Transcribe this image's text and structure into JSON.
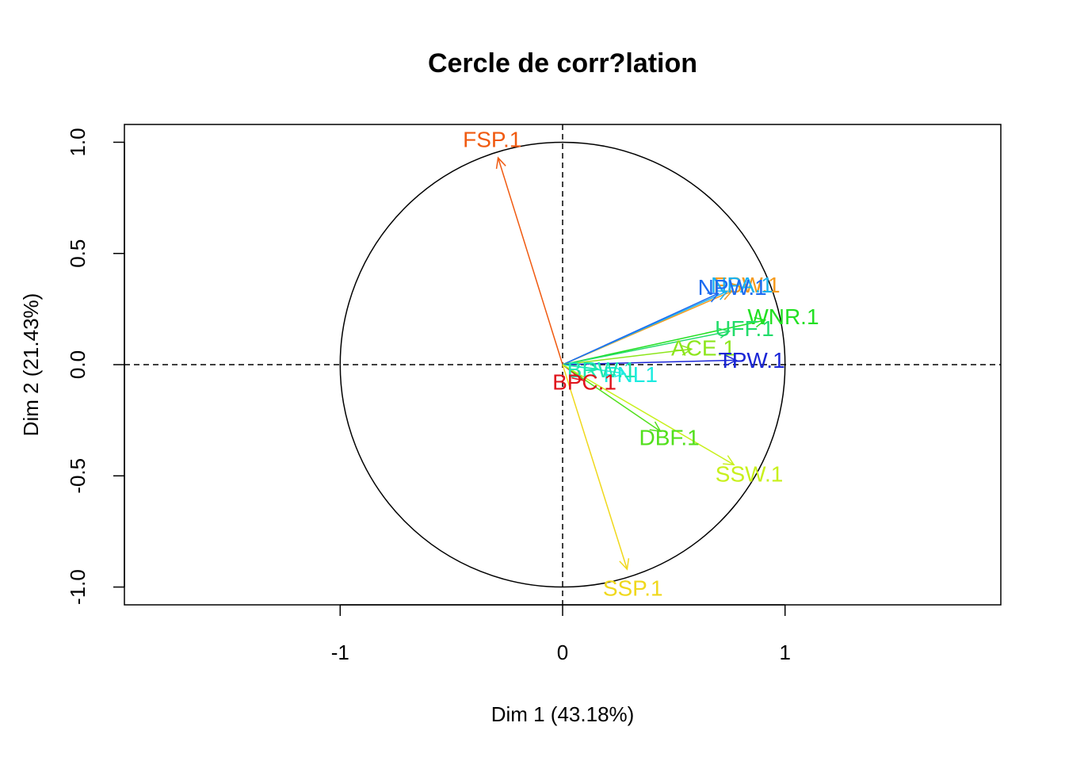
{
  "chart_data": {
    "type": "scatter",
    "subtype": "pca-correlation-circle",
    "title": "Cercle de corr?lation",
    "xlabel": "Dim 1 (43.18%)",
    "ylabel": "Dim 2 (21.43%)",
    "xlim": [
      -1.97,
      1.97
    ],
    "ylim": [
      -1.08,
      1.08
    ],
    "x_ticks": [
      {
        "value": -1,
        "label": "-1"
      },
      {
        "value": 0,
        "label": "0"
      },
      {
        "value": 1,
        "label": "1"
      }
    ],
    "y_ticks": [
      {
        "value": -1.0,
        "label": "-1.0"
      },
      {
        "value": -0.5,
        "label": "-0.5"
      },
      {
        "value": 0.0,
        "label": "0.0"
      },
      {
        "value": 0.5,
        "label": "0.5"
      },
      {
        "value": 1.0,
        "label": "1.0"
      }
    ],
    "unit_circle": true,
    "reference_lines": "dashed at x=0 and y=0",
    "variables": [
      {
        "name": "FSP.1",
        "x": -0.29,
        "y": 0.93,
        "color": "#F05A10"
      },
      {
        "name": "FSW.1",
        "x": 0.76,
        "y": 0.33,
        "color": "#F59A1C"
      },
      {
        "name": "NPA.1",
        "x": 0.74,
        "y": 0.33,
        "color": "#1AB2F0"
      },
      {
        "name": "NPW.1",
        "x": 0.7,
        "y": 0.32,
        "color": "#1C6BF0"
      },
      {
        "name": "WNR.1",
        "x": 0.91,
        "y": 0.2,
        "color": "#22E022"
      },
      {
        "name": "UFF.1",
        "x": 0.75,
        "y": 0.15,
        "color": "#22DC6A"
      },
      {
        "name": "ACE.1",
        "x": 0.58,
        "y": 0.07,
        "color": "#8CE61C"
      },
      {
        "name": "TPW.1",
        "x": 0.78,
        "y": 0.02,
        "color": "#1A26D6"
      },
      {
        "name": "FNL1",
        "x": 0.28,
        "y": -0.04,
        "color": "#1CEBE0"
      },
      {
        "name": "BRW.1",
        "x": 0.16,
        "y": -0.02,
        "color": "#1CE8B0"
      },
      {
        "name": "BPC.1",
        "x": 0.09,
        "y": -0.07,
        "color": "#E0141C"
      },
      {
        "name": "DBF.1",
        "x": 0.44,
        "y": -0.3,
        "color": "#52E01C"
      },
      {
        "name": "SSW.1",
        "x": 0.77,
        "y": -0.45,
        "color": "#C8F01C"
      },
      {
        "name": "SSP.1",
        "x": 0.29,
        "y": -0.92,
        "color": "#F0D81C"
      }
    ]
  }
}
